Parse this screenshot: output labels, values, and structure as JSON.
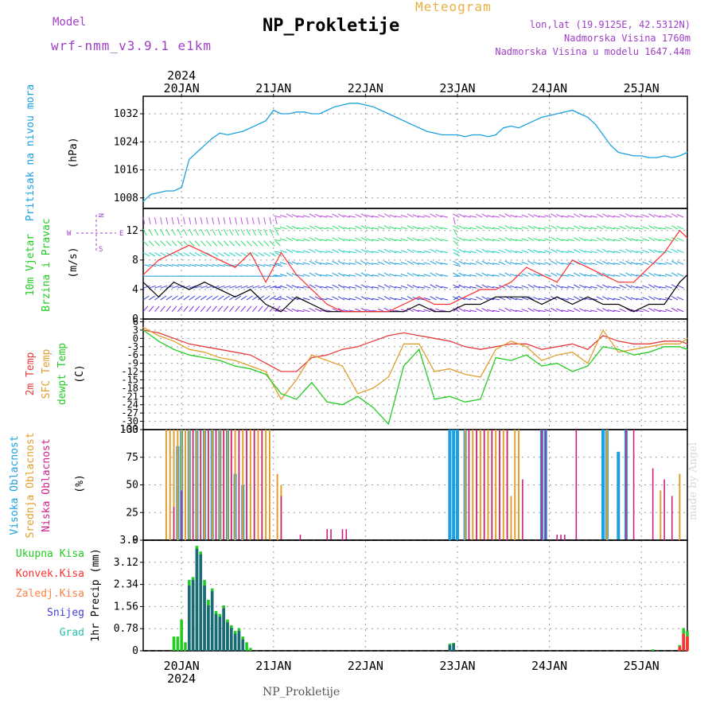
{
  "header": {
    "model_label": "Model",
    "model_name": "wrf-nmm_v3.9.1 e1km",
    "product": "Meteogram",
    "station": "NP_Prokletije",
    "lonlat": "lon,lat (19.9125E, 42.5312N)",
    "altitude": "Nadmorska Visina 1760m",
    "model_altitude": "Nadmorska Visina u modelu 1647.44m"
  },
  "footer": {
    "station": "NP_Prokletije"
  },
  "watermark": "made by Angel",
  "colors": {
    "pressure": "#1ca0e0",
    "wind_speed": "#000000",
    "gust": "#ff3030",
    "t2m": "#e83c3c",
    "sfc": "#e0a030",
    "dewpt": "#22cc22",
    "high_cloud": "#1ca0e0",
    "mid_cloud": "#e0a030",
    "low_cloud": "#cc2288",
    "total_precip": "#22cc22",
    "conv_precip": "#ff3030",
    "frozen_precip": "#ff8040",
    "snow": "#4040d0",
    "hail": "#22c0b0"
  },
  "chart_data": [
    {
      "type": "line",
      "title": "Pritisak na nivou mora",
      "ylabel": "(hPa)",
      "ylim": [
        1005,
        1037
      ],
      "yticks": [
        1008,
        1016,
        1024,
        1032
      ],
      "x_top_year": "2024",
      "x_tick_labels": [
        "20JAN",
        "21JAN",
        "22JAN",
        "23JAN",
        "24JAN",
        "25JAN"
      ],
      "series": [
        {
          "x": [
            0,
            2,
            4,
            6,
            8,
            10,
            12,
            14,
            16,
            18,
            20,
            22,
            24,
            26,
            28,
            30,
            32,
            34,
            36,
            38,
            40,
            42,
            44,
            46,
            48,
            50,
            52,
            54,
            56,
            58,
            60,
            62,
            64,
            66,
            68,
            70,
            72,
            74,
            76,
            78,
            80,
            82,
            84,
            86,
            88,
            90,
            92,
            94,
            96,
            98,
            100,
            102,
            104,
            106,
            108,
            110,
            112,
            114,
            116,
            118,
            120,
            122,
            124,
            126,
            128,
            130,
            132,
            134,
            136,
            138,
            140,
            142
          ],
          "values": [
            1007,
            1009,
            1009.5,
            1010,
            1010,
            1011,
            1019,
            1021,
            1023,
            1025,
            1026.5,
            1026,
            1026.5,
            1027,
            1028,
            1029,
            1030,
            1033,
            1032,
            1032,
            1032.5,
            1032.5,
            1032,
            1032,
            1033,
            1034,
            1034.5,
            1035,
            1035,
            1034.5,
            1034,
            1033,
            1032,
            1031,
            1030,
            1029,
            1028,
            1027,
            1026.5,
            1026,
            1026,
            1026,
            1025.5,
            1026,
            1026,
            1025.5,
            1026,
            1028,
            1028.5,
            1028,
            1029,
            1030,
            1031,
            1031.5,
            1032,
            1032.5,
            1033,
            1032,
            1031,
            1029,
            1026,
            1023,
            1021,
            1020.5,
            1020,
            1020,
            1019.5,
            1019.5,
            1020,
            1019.5,
            1020,
            1021
          ]
        }
      ]
    },
    {
      "type": "line",
      "title": "10m Vjetar Brzina i Pravac",
      "ylabel": "(m/s)",
      "compass": {
        "n": "N",
        "s": "S",
        "e": "E",
        "w": "W"
      },
      "ylim": [
        0,
        15
      ],
      "yticks": [
        0,
        4,
        8,
        12
      ],
      "series": [
        {
          "name": "wind_speed",
          "x": [
            0,
            4,
            8,
            12,
            16,
            20,
            24,
            28,
            32,
            36,
            40,
            44,
            48,
            52,
            56,
            60,
            64,
            68,
            72,
            76,
            80,
            84,
            88,
            92,
            96,
            100,
            104,
            108,
            112,
            116,
            120,
            124,
            128,
            132,
            136,
            140,
            142
          ],
          "values": [
            5,
            3,
            5,
            4,
            5,
            4,
            3,
            4,
            2,
            1,
            3,
            2,
            1,
            1,
            1,
            1,
            1,
            1,
            2,
            1,
            1,
            2,
            2,
            3,
            3,
            3,
            2,
            3,
            2,
            3,
            2,
            2,
            1,
            2,
            2,
            5,
            6
          ]
        },
        {
          "name": "gust",
          "x": [
            0,
            4,
            8,
            12,
            16,
            20,
            24,
            28,
            32,
            36,
            40,
            44,
            48,
            52,
            56,
            60,
            64,
            68,
            72,
            76,
            80,
            84,
            88,
            92,
            96,
            100,
            104,
            108,
            112,
            116,
            120,
            124,
            128,
            132,
            136,
            140,
            142
          ],
          "values": [
            6,
            8,
            9,
            10,
            9,
            8,
            7,
            9,
            5,
            9,
            6,
            4,
            2,
            1,
            1,
            1,
            1,
            2,
            3,
            2,
            2,
            3,
            4,
            4,
            5,
            7,
            6,
            5,
            8,
            7,
            6,
            5,
            5,
            7,
            9,
            12,
            11
          ]
        }
      ]
    },
    {
      "type": "line",
      "title": "2m Temp / SFC Temp / dewpt Temp",
      "ylabel": "(C)",
      "ylim": [
        -33,
        7
      ],
      "yticks": [
        6,
        3,
        0,
        -3,
        -6,
        -9,
        -12,
        -15,
        -18,
        -21,
        -24,
        -27,
        -30,
        -33
      ],
      "series": [
        {
          "name": "2m Temp",
          "x": [
            0,
            4,
            8,
            12,
            16,
            20,
            24,
            28,
            32,
            36,
            40,
            44,
            48,
            52,
            56,
            60,
            64,
            68,
            72,
            76,
            80,
            84,
            88,
            92,
            96,
            100,
            104,
            108,
            112,
            116,
            120,
            124,
            128,
            132,
            136,
            140,
            142
          ],
          "values": [
            3,
            2,
            0,
            -2,
            -3,
            -4,
            -5,
            -6,
            -9,
            -12,
            -12,
            -7,
            -6,
            -4,
            -3,
            -1,
            1,
            2,
            1,
            0,
            -1,
            -3,
            -4,
            -3,
            -2,
            -2,
            -4,
            -3,
            -2,
            -4,
            1,
            -1,
            -2,
            -2,
            -1,
            -1,
            -2
          ]
        },
        {
          "name": "SFC Temp",
          "x": [
            0,
            4,
            8,
            12,
            16,
            20,
            24,
            28,
            32,
            36,
            40,
            44,
            48,
            52,
            56,
            60,
            64,
            68,
            72,
            76,
            80,
            84,
            88,
            92,
            96,
            100,
            104,
            108,
            112,
            116,
            120,
            124,
            128,
            132,
            136,
            140,
            142
          ],
          "values": [
            4,
            1,
            -1,
            -4,
            -5,
            -7,
            -8,
            -10,
            -12,
            -22,
            -15,
            -6,
            -8,
            -10,
            -20,
            -18,
            -14,
            -2,
            -2,
            -12,
            -11,
            -13,
            -14,
            -4,
            -1,
            -3,
            -8,
            -6,
            -5,
            -9,
            3,
            -5,
            -4,
            -3,
            -2,
            -2,
            0
          ]
        },
        {
          "name": "dewpt Temp",
          "x": [
            0,
            4,
            8,
            12,
            16,
            20,
            24,
            28,
            32,
            36,
            40,
            44,
            48,
            52,
            56,
            60,
            64,
            68,
            72,
            76,
            80,
            84,
            88,
            92,
            96,
            100,
            104,
            108,
            112,
            116,
            120,
            124,
            128,
            132,
            136,
            140,
            142
          ],
          "values": [
            3,
            -1,
            -4,
            -6,
            -7,
            -8,
            -10,
            -11,
            -13,
            -20,
            -22,
            -16,
            -23,
            -24,
            -21,
            -25,
            -31,
            -10,
            -4,
            -22,
            -21,
            -23,
            -22,
            -7,
            -8,
            -6,
            -10,
            -9,
            -12,
            -10,
            -3,
            -4,
            -6,
            -5,
            -3,
            -3,
            -4
          ]
        }
      ]
    },
    {
      "type": "bar",
      "title": "Visoka Oblacnost / Srednja Oblacnost / Niska Oblacnost",
      "ylabel": "(%)",
      "ylim": [
        0,
        100
      ],
      "yticks": [
        0,
        25,
        50,
        75,
        100
      ],
      "series": [
        {
          "name": "Visoka Oblacnost",
          "x": [
            9,
            10,
            12,
            14,
            16,
            18,
            20,
            22,
            24,
            26,
            80,
            81,
            82,
            84,
            104,
            105,
            120,
            121,
            124,
            126
          ],
          "values": [
            85,
            100,
            100,
            100,
            100,
            100,
            100,
            100,
            60,
            50,
            100,
            100,
            100,
            100,
            100,
            100,
            100,
            100,
            80,
            100
          ]
        },
        {
          "name": "Srednja Oblacnost",
          "x": [
            6,
            7,
            8,
            9,
            10,
            11,
            12,
            13,
            14,
            15,
            16,
            17,
            18,
            19,
            20,
            21,
            22,
            23,
            24,
            25,
            26,
            27,
            28,
            29,
            30,
            31,
            32,
            33,
            35,
            36,
            84,
            85,
            86,
            87,
            88,
            89,
            90,
            91,
            92,
            93,
            94,
            95,
            96,
            97,
            98,
            121,
            135,
            140
          ],
          "values": [
            100,
            100,
            100,
            100,
            100,
            100,
            100,
            100,
            100,
            100,
            100,
            100,
            100,
            100,
            100,
            100,
            100,
            100,
            100,
            100,
            100,
            100,
            100,
            100,
            100,
            100,
            100,
            100,
            60,
            50,
            100,
            100,
            100,
            100,
            100,
            100,
            100,
            100,
            100,
            100,
            100,
            100,
            40,
            100,
            100,
            100,
            45,
            60
          ]
        },
        {
          "name": "Niska Oblacnost",
          "x": [
            8,
            10,
            13,
            15,
            17,
            19,
            21,
            23,
            25,
            27,
            29,
            31,
            36,
            41,
            48,
            49,
            52,
            53,
            85,
            87,
            89,
            91,
            93,
            95,
            99,
            104,
            105,
            108,
            109,
            110,
            113,
            126,
            128,
            133,
            136,
            138
          ],
          "values": [
            30,
            45,
            100,
            100,
            100,
            100,
            100,
            100,
            100,
            100,
            100,
            100,
            40,
            5,
            10,
            10,
            10,
            10,
            100,
            100,
            100,
            100,
            100,
            100,
            55,
            100,
            100,
            5,
            5,
            5,
            100,
            100,
            100,
            65,
            55,
            40
          ]
        }
      ]
    },
    {
      "type": "bar",
      "title": "Ukupna Kisa / Konvek.Kisa / Zaledj.Kisa / Snijeg / Grad",
      "ylabel": "1hr Precip (mm)",
      "ylim": [
        0,
        3.9
      ],
      "yticks": [
        0,
        0.78,
        1.56,
        2.34,
        3.12,
        3.9
      ],
      "x_bottom_year": "2024",
      "x_tick_labels": [
        "20JAN",
        "21JAN",
        "22JAN",
        "23JAN",
        "24JAN",
        "25JAN"
      ],
      "series": [
        {
          "name": "Ukupna Kisa",
          "x": [
            8,
            9,
            10,
            11,
            12,
            13,
            14,
            15,
            16,
            17,
            18,
            19,
            20,
            21,
            22,
            23,
            24,
            25,
            26,
            27,
            28,
            80,
            81,
            133,
            140,
            141,
            142
          ],
          "values": [
            0.5,
            0.5,
            1.1,
            0.3,
            2.5,
            2.6,
            3.7,
            3.5,
            2.5,
            1.8,
            2.2,
            1.4,
            1.3,
            1.6,
            1.1,
            0.9,
            0.7,
            0.8,
            0.5,
            0.3,
            0.1,
            0.25,
            0.28,
            0.05,
            0.2,
            0.8,
            0.7
          ]
        },
        {
          "name": "Konvek.Kisa",
          "x": [
            140,
            141,
            142
          ],
          "values": [
            0.15,
            0.6,
            0.5
          ]
        },
        {
          "name": "Snijeg",
          "x": [
            12,
            13,
            14,
            15,
            16,
            17,
            18,
            19,
            20,
            21,
            22,
            23,
            24,
            25,
            26,
            80,
            81
          ],
          "values": [
            2.3,
            2.5,
            3.6,
            3.4,
            2.3,
            1.6,
            2.1,
            1.3,
            1.2,
            1.5,
            1.0,
            0.8,
            0.6,
            0.7,
            0.4,
            0.2,
            0.25
          ]
        }
      ]
    }
  ]
}
